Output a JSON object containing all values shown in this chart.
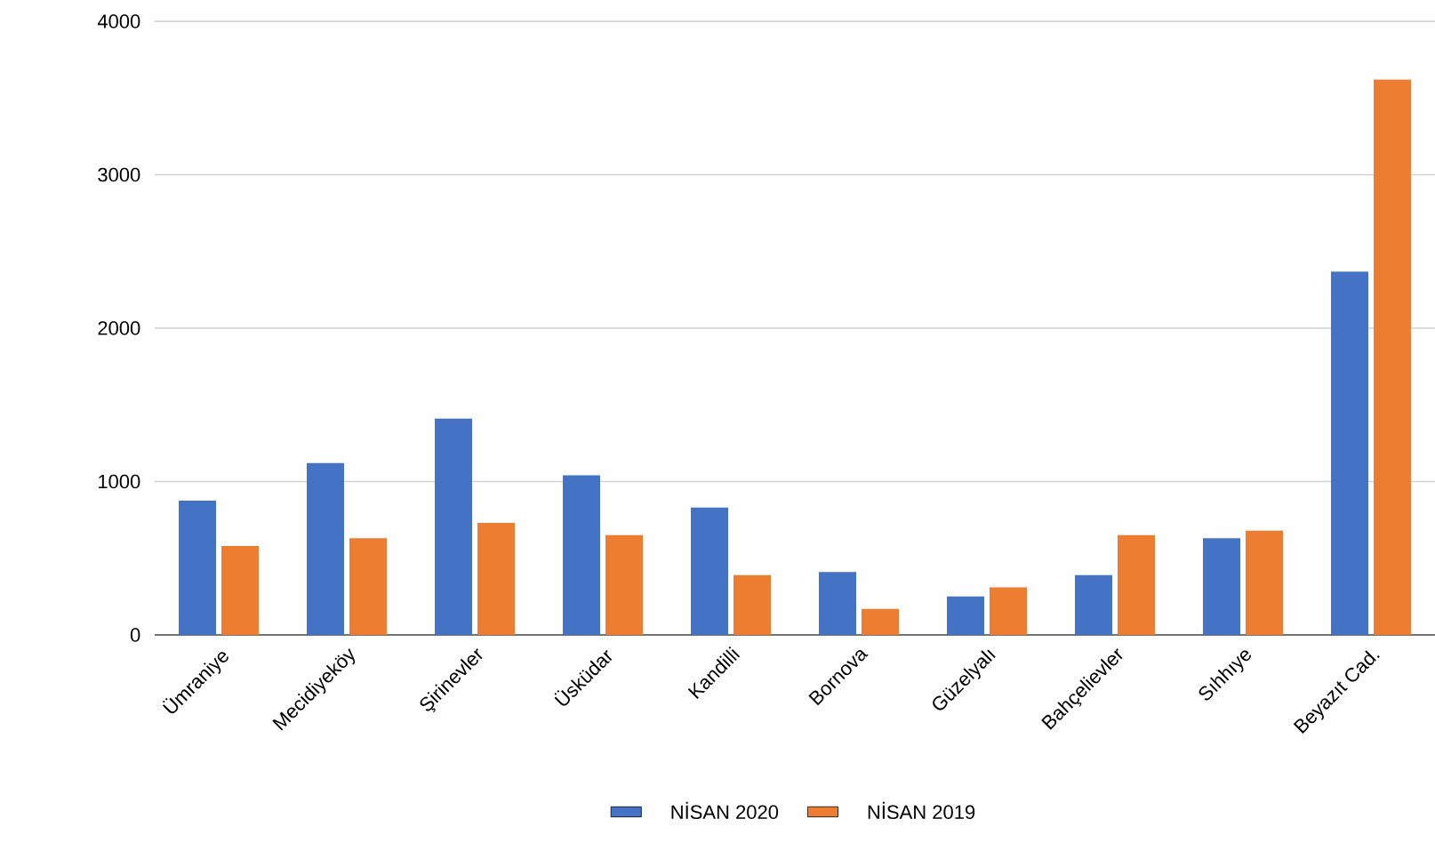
{
  "chart_data": {
    "type": "bar",
    "categories": [
      "Ümraniye",
      "Mecidiyeköy",
      "Şirinevler",
      "Üsküdar",
      "Kandilli",
      "Bornova",
      "Güzelyalı",
      "Bahçelievler",
      "Sıhhıye",
      "Beyazıt Cad."
    ],
    "series": [
      {
        "name": "NİSAN 2020",
        "color": "#4472c4",
        "values": [
          875,
          1120,
          1410,
          1040,
          830,
          410,
          250,
          390,
          630,
          2370
        ]
      },
      {
        "name": "NİSAN 2019",
        "color": "#ed7d31",
        "values": [
          580,
          630,
          730,
          650,
          390,
          170,
          310,
          650,
          680,
          3620
        ]
      }
    ],
    "ylim": [
      0,
      4000
    ],
    "yticks": [
      0,
      1000,
      2000,
      3000,
      4000
    ],
    "grid": "y",
    "legend": "bottom"
  }
}
